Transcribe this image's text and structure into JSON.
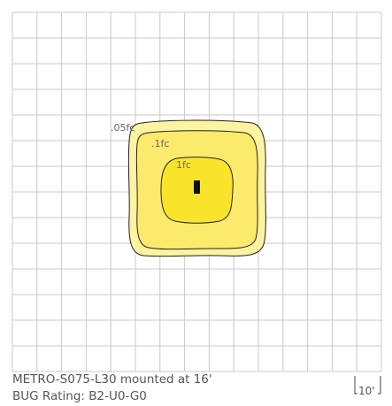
{
  "contours": [
    {
      "label": ".05fc"
    },
    {
      "label": ".1fc"
    },
    {
      "label": "1fc"
    }
  ],
  "caption": {
    "line1": "METRO-S075-L30 mounted at 16'",
    "line2": "BUG Rating: B2-U0-G0"
  },
  "scale": "10'"
}
